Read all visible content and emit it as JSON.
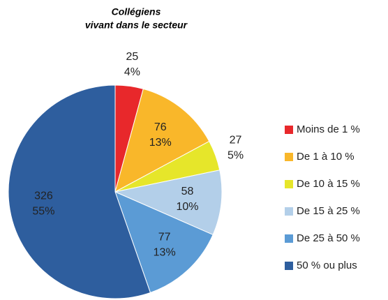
{
  "chart_data": {
    "type": "pie",
    "title": [
      "Collégiens",
      "vivant dans le secteur"
    ],
    "categories": [
      "Moins de 1 %",
      "De 1 à 10 %",
      "De 10 à 15 %",
      "De 15 à 25 %",
      "De 25 à 50 %",
      "50 % ou plus"
    ],
    "values": [
      25,
      76,
      27,
      58,
      77,
      326
    ],
    "percent_labels": [
      "4%",
      "13%",
      "5%",
      "10%",
      "13%",
      "55%"
    ],
    "colors": [
      "#e8282b",
      "#f9b72a",
      "#e6e62a",
      "#b3cfe9",
      "#5b9bd5",
      "#2e5e9e"
    ]
  }
}
